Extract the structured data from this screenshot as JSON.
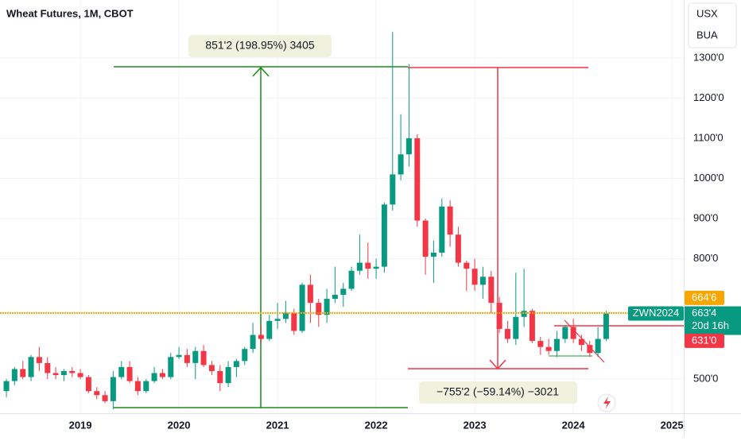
{
  "chart_data": {
    "type": "candlestick",
    "title": "Wheat Futures, 1M, CBOT",
    "currency": "USX",
    "unit": "BUA",
    "x": [
      2018.25,
      2018.333,
      2018.417,
      2018.5,
      2018.583,
      2018.667,
      2018.75,
      2018.833,
      2018.917,
      2019,
      2019.083,
      2019.167,
      2019.25,
      2019.333,
      2019.417,
      2019.5,
      2019.583,
      2019.667,
      2019.75,
      2019.833,
      2019.917,
      2020,
      2020.083,
      2020.167,
      2020.25,
      2020.333,
      2020.417,
      2020.5,
      2020.583,
      2020.667,
      2020.75,
      2020.833,
      2020.917,
      2021,
      2021.083,
      2021.167,
      2021.25,
      2021.333,
      2021.417,
      2021.5,
      2021.583,
      2021.667,
      2021.75,
      2021.833,
      2021.917,
      2022,
      2022.083,
      2022.167,
      2022.25,
      2022.333,
      2022.417,
      2022.5,
      2022.583,
      2022.667,
      2022.75,
      2022.833,
      2022.917,
      2023,
      2023.083,
      2023.167,
      2023.25,
      2023.333,
      2023.417,
      2023.5,
      2023.583,
      2023.667,
      2023.75,
      2023.833,
      2023.917,
      2024,
      2024.083,
      2024.167,
      2024.25,
      2024.333
    ],
    "open": [
      470,
      495,
      525,
      505,
      555,
      540,
      515,
      510,
      520,
      515,
      505,
      470,
      460,
      445,
      505,
      530,
      495,
      470,
      495,
      515,
      505,
      555,
      560,
      540,
      570,
      535,
      520,
      490,
      530,
      545,
      575,
      610,
      600,
      645,
      650,
      665,
      620,
      735,
      690,
      660,
      700,
      710,
      725,
      770,
      790,
      775,
      780,
      935,
      1010,
      1060,
      1100,
      895,
      805,
      815,
      930,
      860,
      790,
      775,
      735,
      755,
      690,
      625,
      600,
      655,
      670,
      595,
      580,
      570,
      600,
      630,
      600,
      585,
      565,
      600
    ],
    "high": [
      500,
      530,
      545,
      560,
      580,
      555,
      530,
      525,
      530,
      525,
      510,
      480,
      470,
      520,
      545,
      545,
      505,
      500,
      530,
      525,
      565,
      580,
      575,
      580,
      585,
      545,
      535,
      545,
      550,
      580,
      640,
      635,
      660,
      690,
      695,
      675,
      740,
      760,
      700,
      725,
      780,
      740,
      780,
      860,
      840,
      800,
      940,
      1365,
      1160,
      1285,
      1110,
      900,
      845,
      950,
      945,
      880,
      795,
      800,
      780,
      770,
      705,
      645,
      765,
      775,
      675,
      605,
      600,
      620,
      635,
      650,
      610,
      595,
      630,
      670
    ],
    "low": [
      455,
      485,
      500,
      495,
      520,
      500,
      500,
      495,
      505,
      500,
      465,
      450,
      440,
      425,
      500,
      490,
      460,
      465,
      490,
      500,
      500,
      550,
      530,
      500,
      530,
      510,
      470,
      480,
      505,
      535,
      565,
      590,
      595,
      625,
      640,
      610,
      615,
      640,
      630,
      640,
      690,
      680,
      720,
      760,
      750,
      750,
      765,
      920,
      995,
      1030,
      880,
      760,
      740,
      805,
      830,
      780,
      720,
      720,
      700,
      665,
      615,
      590,
      585,
      630,
      590,
      560,
      560,
      555,
      590,
      590,
      570,
      555,
      555,
      595
    ],
    "close": [
      495,
      525,
      505,
      555,
      540,
      515,
      510,
      520,
      515,
      505,
      470,
      460,
      445,
      505,
      530,
      495,
      470,
      495,
      515,
      505,
      555,
      560,
      540,
      570,
      535,
      520,
      490,
      530,
      545,
      575,
      610,
      600,
      645,
      650,
      665,
      620,
      735,
      690,
      660,
      700,
      710,
      725,
      770,
      790,
      775,
      780,
      935,
      1010,
      1060,
      1100,
      895,
      805,
      815,
      930,
      860,
      790,
      775,
      735,
      755,
      690,
      625,
      600,
      655,
      670,
      595,
      580,
      570,
      600,
      630,
      600,
      585,
      565,
      600,
      663.5
    ],
    "up_color": "#089981",
    "down_color": "#f23645",
    "xlim": [
      2018.185,
      2025.12
    ],
    "xticks": [
      2019,
      2020,
      2021,
      2022,
      2023,
      2024,
      2025
    ],
    "ylim": [
      415,
      1444.6
    ],
    "yticks": [
      {
        "value": 500,
        "label": "500'0"
      },
      {
        "value": 800,
        "label": "800'0"
      },
      {
        "value": 900,
        "label": "900'0"
      },
      {
        "value": 1000,
        "label": "1000'0"
      },
      {
        "value": 1100,
        "label": "1100'0"
      },
      {
        "value": 1200,
        "label": "1200'0"
      },
      {
        "value": 1300,
        "label": "1300'0"
      }
    ],
    "grid": true,
    "price_line": {
      "value": 664.75,
      "label": "664'6",
      "color": "#f7a600"
    },
    "symbol": "ZWN2024",
    "last_price": {
      "value": 663.5,
      "label": "663'4"
    },
    "countdown": "20d 16h",
    "level": {
      "value": 631,
      "label": "631'0",
      "color": "#f23645"
    },
    "annotations": [
      "851'2 (198.95%) 3405",
      "−755'2 (−59.14%) −3021"
    ]
  }
}
